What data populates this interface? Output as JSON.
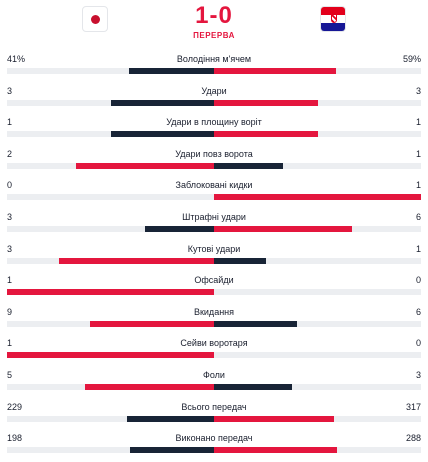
{
  "header": {
    "score": "1-0",
    "status": "ПЕРЕРВА",
    "home_flag": "japan-flag-icon",
    "away_flag": "croatia-flag-icon"
  },
  "colors": {
    "leading": "#e4163e",
    "trailing": "#182436",
    "track": "#eceef1"
  },
  "stats": [
    {
      "label": "Володіння м'ячем",
      "home": "41%",
      "away": "59%",
      "home_val": 41,
      "away_val": 59
    },
    {
      "label": "Удари",
      "home": "3",
      "away": "3",
      "home_val": 3,
      "away_val": 3
    },
    {
      "label": "Удари в площину воріт",
      "home": "1",
      "away": "1",
      "home_val": 1,
      "away_val": 1
    },
    {
      "label": "Удари повз ворота",
      "home": "2",
      "away": "1",
      "home_val": 2,
      "away_val": 1
    },
    {
      "label": "Заблоковані кидки",
      "home": "0",
      "away": "1",
      "home_val": 0,
      "away_val": 1
    },
    {
      "label": "Штрафні удари",
      "home": "3",
      "away": "6",
      "home_val": 3,
      "away_val": 6
    },
    {
      "label": "Кутові удари",
      "home": "3",
      "away": "1",
      "home_val": 3,
      "away_val": 1
    },
    {
      "label": "Офсайди",
      "home": "1",
      "away": "0",
      "home_val": 1,
      "away_val": 0
    },
    {
      "label": "Вкидання",
      "home": "9",
      "away": "6",
      "home_val": 9,
      "away_val": 6
    },
    {
      "label": "Сейви воротаря",
      "home": "1",
      "away": "0",
      "home_val": 1,
      "away_val": 0
    },
    {
      "label": "Фоли",
      "home": "5",
      "away": "3",
      "home_val": 5,
      "away_val": 3
    },
    {
      "label": "Всього передач",
      "home": "229",
      "away": "317",
      "home_val": 229,
      "away_val": 317
    },
    {
      "label": "Виконано передач",
      "home": "198",
      "away": "288",
      "home_val": 198,
      "away_val": 288
    }
  ]
}
